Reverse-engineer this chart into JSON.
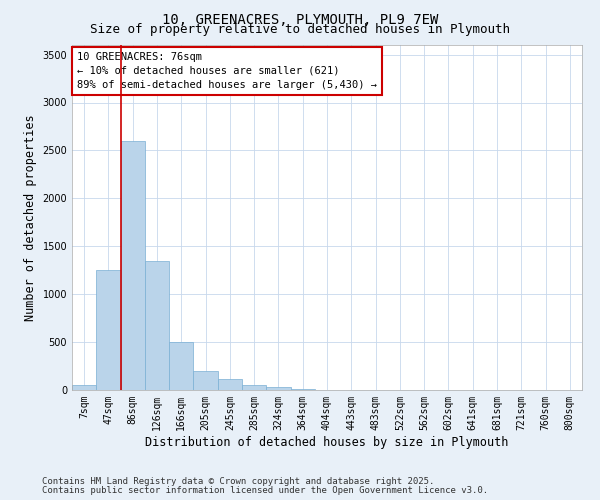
{
  "title_line1": "10, GREENACRES, PLYMOUTH, PL9 7EW",
  "title_line2": "Size of property relative to detached houses in Plymouth",
  "xlabel": "Distribution of detached houses by size in Plymouth",
  "ylabel": "Number of detached properties",
  "categories": [
    "7sqm",
    "47sqm",
    "86sqm",
    "126sqm",
    "166sqm",
    "205sqm",
    "245sqm",
    "285sqm",
    "324sqm",
    "364sqm",
    "404sqm",
    "443sqm",
    "483sqm",
    "522sqm",
    "562sqm",
    "602sqm",
    "641sqm",
    "681sqm",
    "721sqm",
    "760sqm",
    "800sqm"
  ],
  "values": [
    50,
    1250,
    2600,
    1350,
    500,
    200,
    115,
    50,
    30,
    10,
    5,
    2,
    0,
    0,
    0,
    0,
    0,
    0,
    0,
    0,
    0
  ],
  "bar_color": "#bad4ea",
  "bar_edge_color": "#7aafd4",
  "red_line_x": 1.5,
  "annotation_title": "10 GREENACRES: 76sqm",
  "annotation_line1": "← 10% of detached houses are smaller (621)",
  "annotation_line2": "89% of semi-detached houses are larger (5,430) →",
  "annotation_box_facecolor": "#ffffff",
  "annotation_box_edgecolor": "#cc0000",
  "red_line_color": "#cc0000",
  "ylim": [
    0,
    3600
  ],
  "yticks": [
    0,
    500,
    1000,
    1500,
    2000,
    2500,
    3000,
    3500
  ],
  "plot_bg_color": "#ffffff",
  "fig_bg_color": "#e8f0f8",
  "grid_color": "#c8d8ec",
  "footer_line1": "Contains HM Land Registry data © Crown copyright and database right 2025.",
  "footer_line2": "Contains public sector information licensed under the Open Government Licence v3.0.",
  "title_fontsize": 10,
  "subtitle_fontsize": 9,
  "axis_label_fontsize": 8.5,
  "tick_fontsize": 7,
  "annotation_fontsize": 7.5,
  "footer_fontsize": 6.5
}
